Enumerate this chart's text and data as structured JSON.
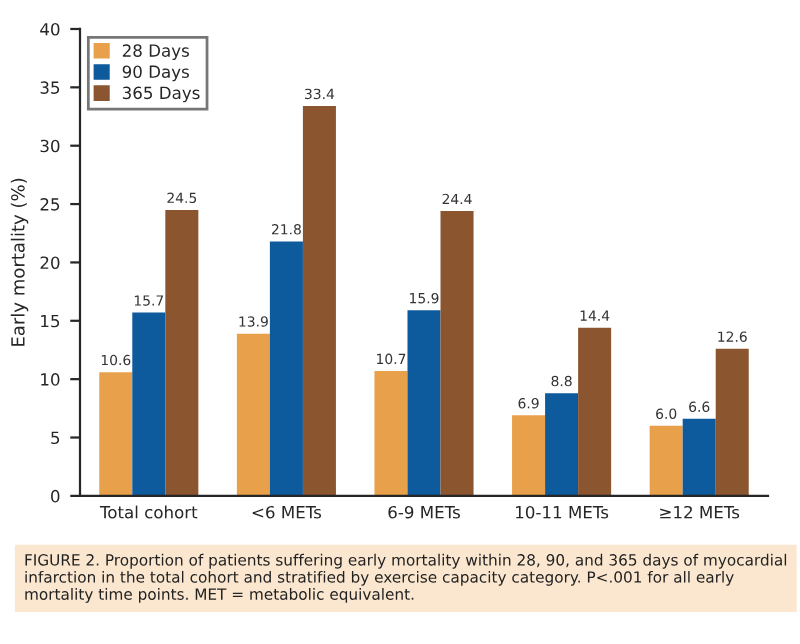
{
  "chart_data": {
    "type": "bar",
    "ylabel": "Early mortality (%)",
    "categories": [
      "Total cohort",
      "<6 METs",
      "6-9 METs",
      "10-11 METs",
      "≥12 METs"
    ],
    "series": [
      {
        "name": "28 Days",
        "color": "#e8a04a",
        "values": [
          10.6,
          13.9,
          10.7,
          6.9,
          6.0
        ],
        "value_labels": [
          "10.6",
          "13.9",
          "10.7",
          "6.9",
          "6.0"
        ]
      },
      {
        "name": "90 Days",
        "color": "#0d5a9c",
        "values": [
          15.7,
          21.8,
          15.9,
          8.8,
          6.6
        ],
        "value_labels": [
          "15.7",
          "21.8",
          "15.9",
          "8.8",
          "6.6"
        ]
      },
      {
        "name": "365 Days",
        "color": "#8b5530",
        "values": [
          24.5,
          33.4,
          24.4,
          14.4,
          12.6
        ],
        "value_labels": [
          "24.5",
          "33.4",
          "24.4",
          "14.4",
          "12.6"
        ]
      }
    ],
    "ylim": [
      0,
      40
    ],
    "yticks": [
      0,
      5,
      10,
      15,
      20,
      25,
      30,
      35,
      40
    ],
    "grid": false,
    "legend": "top left",
    "annotations": [
      "FIGURE 2. Proportion of patients suffering early mortality within 28, 90, and 365 days of myocardial infarction in the total cohort and stratified by exercise capacity category. P<.001 for all early mortality time points. MET = metabolic equivalent."
    ]
  }
}
